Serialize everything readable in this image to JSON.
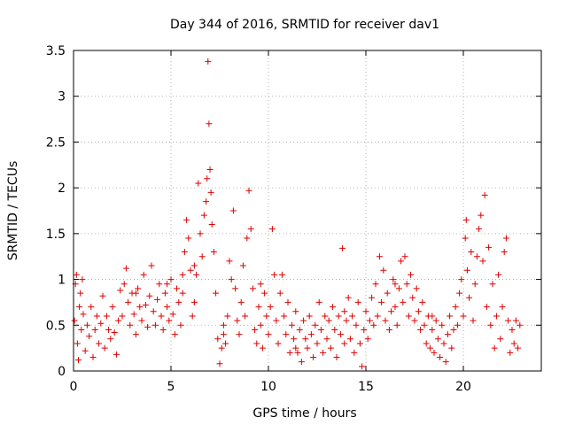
{
  "chart_data": {
    "type": "scatter",
    "title": "Day 344 of 2016, SRMTID for receiver dav1",
    "xlabel": "GPS time / hours",
    "ylabel": "SRMTID / TECUs",
    "xlim": [
      0,
      24
    ],
    "ylim": [
      0,
      3.5
    ],
    "x_ticks": [
      0,
      5,
      10,
      15,
      20
    ],
    "x_tick_labels": [
      "0",
      "5",
      "10",
      "15",
      "20"
    ],
    "y_ticks": [
      0,
      0.5,
      1,
      1.5,
      2,
      2.5,
      3,
      3.5
    ],
    "y_tick_labels": [
      "0",
      "0.5",
      "1",
      "1.5",
      "2",
      "2.5",
      "3",
      "3.5"
    ],
    "grid": true,
    "marker": "+",
    "color": "#dd0000",
    "series": [
      {
        "name": "dav1",
        "points": [
          [
            0.05,
            0.55
          ],
          [
            0.1,
            0.95
          ],
          [
            0.15,
            1.05
          ],
          [
            0.2,
            0.3
          ],
          [
            0.25,
            0.12
          ],
          [
            0.3,
            0.7
          ],
          [
            0.35,
            0.85
          ],
          [
            0.4,
            0.45
          ],
          [
            0.45,
            1.0
          ],
          [
            0.5,
            0.62
          ],
          [
            0.6,
            0.22
          ],
          [
            0.7,
            0.5
          ],
          [
            0.8,
            0.38
          ],
          [
            0.9,
            0.7
          ],
          [
            1.0,
            0.15
          ],
          [
            1.1,
            0.45
          ],
          [
            1.2,
            0.6
          ],
          [
            1.3,
            0.3
          ],
          [
            1.4,
            0.52
          ],
          [
            1.5,
            0.82
          ],
          [
            1.6,
            0.25
          ],
          [
            1.7,
            0.6
          ],
          [
            1.8,
            0.45
          ],
          [
            1.9,
            0.35
          ],
          [
            2.0,
            0.7
          ],
          [
            2.1,
            0.42
          ],
          [
            2.2,
            0.18
          ],
          [
            2.3,
            0.55
          ],
          [
            2.4,
            0.88
          ],
          [
            2.5,
            0.6
          ],
          [
            2.6,
            0.95
          ],
          [
            2.7,
            1.12
          ],
          [
            2.8,
            0.75
          ],
          [
            2.9,
            0.5
          ],
          [
            3.0,
            0.85
          ],
          [
            3.1,
            0.62
          ],
          [
            3.2,
            0.4
          ],
          [
            3.3,
            0.9
          ],
          [
            3.4,
            0.7
          ],
          [
            3.5,
            0.55
          ],
          [
            3.6,
            1.05
          ],
          [
            3.7,
            0.72
          ],
          [
            3.8,
            0.48
          ],
          [
            3.9,
            0.82
          ],
          [
            4.0,
            1.15
          ],
          [
            4.1,
            0.65
          ],
          [
            4.2,
            0.5
          ],
          [
            4.3,
            0.78
          ],
          [
            4.4,
            0.95
          ],
          [
            4.5,
            0.6
          ],
          [
            4.6,
            0.45
          ],
          [
            4.7,
            0.85
          ],
          [
            4.8,
            0.7
          ],
          [
            4.9,
            0.55
          ],
          [
            5.0,
            1.0
          ],
          [
            5.1,
            0.62
          ],
          [
            5.2,
            0.4
          ],
          [
            5.3,
            0.9
          ],
          [
            5.4,
            0.75
          ],
          [
            5.5,
            0.5
          ],
          [
            5.6,
            1.05
          ],
          [
            5.7,
            1.3
          ],
          [
            5.8,
            1.65
          ],
          [
            5.9,
            1.45
          ],
          [
            6.0,
            1.1
          ],
          [
            6.1,
            0.6
          ],
          [
            6.2,
            0.75
          ],
          [
            6.3,
            1.05
          ],
          [
            6.4,
            2.05
          ],
          [
            6.5,
            1.5
          ],
          [
            6.6,
            1.25
          ],
          [
            6.7,
            1.7
          ],
          [
            6.8,
            1.85
          ],
          [
            6.85,
            2.1
          ],
          [
            6.9,
            3.38
          ],
          [
            6.95,
            2.7
          ],
          [
            7.0,
            2.2
          ],
          [
            7.05,
            1.95
          ],
          [
            7.1,
            1.6
          ],
          [
            7.2,
            1.3
          ],
          [
            7.3,
            0.85
          ],
          [
            7.4,
            0.35
          ],
          [
            7.5,
            0.08
          ],
          [
            7.6,
            0.25
          ],
          [
            7.7,
            0.5
          ],
          [
            7.8,
            0.3
          ],
          [
            7.9,
            0.6
          ],
          [
            8.0,
            1.2
          ],
          [
            8.1,
            1.0
          ],
          [
            8.2,
            1.75
          ],
          [
            8.3,
            0.9
          ],
          [
            8.4,
            0.55
          ],
          [
            8.5,
            0.4
          ],
          [
            8.6,
            0.75
          ],
          [
            8.7,
            1.15
          ],
          [
            8.8,
            0.6
          ],
          [
            8.9,
            1.45
          ],
          [
            9.0,
            1.97
          ],
          [
            9.1,
            1.55
          ],
          [
            9.2,
            0.9
          ],
          [
            9.3,
            0.45
          ],
          [
            9.4,
            0.3
          ],
          [
            9.5,
            0.7
          ],
          [
            9.6,
            0.5
          ],
          [
            9.7,
            0.25
          ],
          [
            9.8,
            0.85
          ],
          [
            9.9,
            0.6
          ],
          [
            10.0,
            0.4
          ],
          [
            10.1,
            0.7
          ],
          [
            10.2,
            1.55
          ],
          [
            10.3,
            1.05
          ],
          [
            10.4,
            0.55
          ],
          [
            10.5,
            0.3
          ],
          [
            10.6,
            0.85
          ],
          [
            10.7,
            1.05
          ],
          [
            10.8,
            0.6
          ],
          [
            10.9,
            0.4
          ],
          [
            11.0,
            0.75
          ],
          [
            11.1,
            0.2
          ],
          [
            11.2,
            0.5
          ],
          [
            11.3,
            0.35
          ],
          [
            11.4,
            0.65
          ],
          [
            11.5,
            0.2
          ],
          [
            11.6,
            0.45
          ],
          [
            11.7,
            0.1
          ],
          [
            11.8,
            0.55
          ],
          [
            11.9,
            0.35
          ],
          [
            12.0,
            0.25
          ],
          [
            12.1,
            0.6
          ],
          [
            12.2,
            0.4
          ],
          [
            12.3,
            0.15
          ],
          [
            12.4,
            0.5
          ],
          [
            12.5,
            0.3
          ],
          [
            12.6,
            0.75
          ],
          [
            12.7,
            0.45
          ],
          [
            12.8,
            0.2
          ],
          [
            12.9,
            0.6
          ],
          [
            13.0,
            0.35
          ],
          [
            13.1,
            0.55
          ],
          [
            13.2,
            0.25
          ],
          [
            13.3,
            0.7
          ],
          [
            13.4,
            0.45
          ],
          [
            13.5,
            0.15
          ],
          [
            13.6,
            0.6
          ],
          [
            13.7,
            0.4
          ],
          [
            13.8,
            1.34
          ],
          [
            13.9,
            0.3
          ],
          [
            14.0,
            0.55
          ],
          [
            14.1,
            0.8
          ],
          [
            14.2,
            0.35
          ],
          [
            14.3,
            0.6
          ],
          [
            14.4,
            0.2
          ],
          [
            14.5,
            0.5
          ],
          [
            14.6,
            0.75
          ],
          [
            14.7,
            0.3
          ],
          [
            14.8,
            0.05
          ],
          [
            14.9,
            0.45
          ],
          [
            15.0,
            0.65
          ],
          [
            15.1,
            0.35
          ],
          [
            15.2,
            0.55
          ],
          [
            15.3,
            0.8
          ],
          [
            15.4,
            0.5
          ],
          [
            15.5,
            0.95
          ],
          [
            15.6,
            0.6
          ],
          [
            15.7,
            1.25
          ],
          [
            15.8,
            0.75
          ],
          [
            15.9,
            1.1
          ],
          [
            16.0,
            0.55
          ],
          [
            16.1,
            0.85
          ],
          [
            16.2,
            0.45
          ],
          [
            16.3,
            0.65
          ],
          [
            16.4,
            1.0
          ],
          [
            16.5,
            0.7
          ],
          [
            16.6,
            0.5
          ],
          [
            16.7,
            0.9
          ],
          [
            16.8,
            1.2
          ],
          [
            16.9,
            0.75
          ],
          [
            17.0,
            1.25
          ],
          [
            17.1,
            0.95
          ],
          [
            17.2,
            0.6
          ],
          [
            17.3,
            1.05
          ],
          [
            17.4,
            0.8
          ],
          [
            17.5,
            0.55
          ],
          [
            17.6,
            0.9
          ],
          [
            17.7,
            0.65
          ],
          [
            17.8,
            0.45
          ],
          [
            17.9,
            0.75
          ],
          [
            18.0,
            0.5
          ],
          [
            18.1,
            0.3
          ],
          [
            18.2,
            0.6
          ],
          [
            18.3,
            0.25
          ],
          [
            18.4,
            0.45
          ],
          [
            18.5,
            0.2
          ],
          [
            18.6,
            0.55
          ],
          [
            18.7,
            0.35
          ],
          [
            18.8,
            0.15
          ],
          [
            18.9,
            0.5
          ],
          [
            19.0,
            0.3
          ],
          [
            19.1,
            0.1
          ],
          [
            19.2,
            0.4
          ],
          [
            19.3,
            0.6
          ],
          [
            19.4,
            0.25
          ],
          [
            19.5,
            0.45
          ],
          [
            19.6,
            0.7
          ],
          [
            19.7,
            0.5
          ],
          [
            19.8,
            0.85
          ],
          [
            19.9,
            1.0
          ],
          [
            20.0,
            0.6
          ],
          [
            20.1,
            1.45
          ],
          [
            20.15,
            1.65
          ],
          [
            20.2,
            1.1
          ],
          [
            20.3,
            0.8
          ],
          [
            20.4,
            1.3
          ],
          [
            20.5,
            0.55
          ],
          [
            20.6,
            0.95
          ],
          [
            20.7,
            1.25
          ],
          [
            20.8,
            1.55
          ],
          [
            20.9,
            1.7
          ],
          [
            21.0,
            1.2
          ],
          [
            21.1,
            1.92
          ],
          [
            21.2,
            0.7
          ],
          [
            21.3,
            1.35
          ],
          [
            21.4,
            0.5
          ],
          [
            21.5,
            0.95
          ],
          [
            21.6,
            0.25
          ],
          [
            21.7,
            0.6
          ],
          [
            21.8,
            1.05
          ],
          [
            21.9,
            0.35
          ],
          [
            22.0,
            0.7
          ],
          [
            22.1,
            1.3
          ],
          [
            22.2,
            1.45
          ],
          [
            22.3,
            0.55
          ],
          [
            22.4,
            0.2
          ],
          [
            22.5,
            0.45
          ],
          [
            22.6,
            0.3
          ],
          [
            22.7,
            0.55
          ],
          [
            22.8,
            0.25
          ],
          [
            22.9,
            0.5
          ],
          [
            3.2,
            0.85
          ],
          [
            4.8,
            0.95
          ],
          [
            5.6,
            0.85
          ],
          [
            6.2,
            1.15
          ],
          [
            7.7,
            0.4
          ],
          [
            9.6,
            0.95
          ],
          [
            11.4,
            0.25
          ],
          [
            13.9,
            0.65
          ],
          [
            16.5,
            0.95
          ],
          [
            18.4,
            0.6
          ]
        ]
      }
    ]
  }
}
